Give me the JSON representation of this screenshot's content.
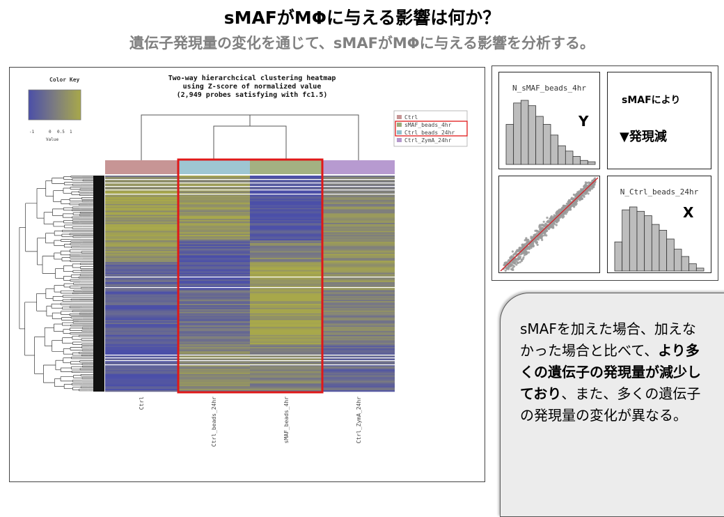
{
  "slide": {
    "title": "sMAFがMΦに与える影響は何か？",
    "subtitle": "遺伝子発現量の変化を通じて、sMAFがMΦに与える影響を分析する。"
  },
  "heatmap": {
    "title_lines": [
      "Two-way hierarchcical clustering heatmap",
      "using Z-score of normalized value",
      "(2,949 probes satisfying with fc1.5)"
    ],
    "color_key": {
      "title": "Color Key",
      "ticks": [
        "-1",
        "0",
        "0.5",
        "1"
      ],
      "axis_label": "Value",
      "low_color": "#4b4fa8",
      "high_color": "#a8a84a"
    },
    "legend": [
      {
        "label": "Ctrl",
        "color": "#c79595"
      },
      {
        "label": "sMAF_beads_4hr",
        "color": "#9aab7c"
      },
      {
        "label": "Ctrl_beads_24hr",
        "color": "#94c1cc"
      },
      {
        "label": "Ctrl_ZymA_24hr",
        "color": "#b497cc"
      }
    ],
    "columns": [
      {
        "label": "Ctrl",
        "bar_color": "#c79595"
      },
      {
        "label": "Ctrl_beads_24hr",
        "bar_color": "#9ec6d2"
      },
      {
        "label": "sMAF_beads_4hr",
        "bar_color": "#a3b182"
      },
      {
        "label": "Ctrl_ZymA_24hr",
        "bar_color": "#b79ad0"
      }
    ],
    "highlight_color": "#e01818"
  },
  "scatter": {
    "top_left_label": "N_sMAF_beads_4hr",
    "y_letter": "Y",
    "note": "sMAFにより",
    "arrow_text": "▼発現減",
    "bottom_right_label": "N_Ctrl_beads_24hr",
    "x_letter": "X",
    "top_hist": [
      30,
      46,
      48,
      44,
      36,
      30,
      22,
      14,
      10,
      6,
      3,
      2
    ],
    "bottom_hist": [
      20,
      42,
      44,
      41,
      38,
      32,
      28,
      22,
      15,
      10,
      5,
      2
    ],
    "line_color": "#d0252b",
    "point_color": "#9a9a9a"
  },
  "callout": {
    "p1": "sMAFを加えた場合、加えなかった場合と比べて、",
    "p2": "より多くの遺伝子の発現量が減少しており",
    "p3": "、また、多くの遺伝子の発現量の変化が異なる。"
  }
}
